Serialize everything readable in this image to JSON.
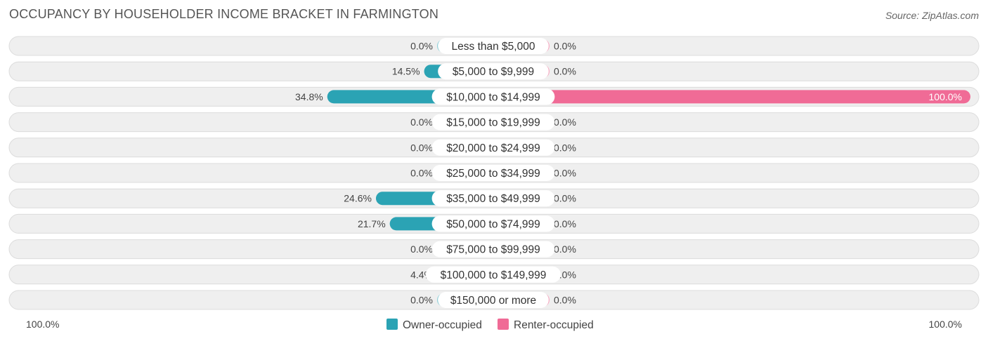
{
  "title": "OCCUPANCY BY HOUSEHOLDER INCOME BRACKET IN FARMINGTON",
  "source": "Source: ZipAtlas.com",
  "colors": {
    "owner": "#2ba3b4",
    "owner_light": "#8ecfd8",
    "renter": "#f06b96",
    "renter_light": "#f7a8c1",
    "row_bg": "#efefef",
    "row_border": "#dcdcdc"
  },
  "chart_data": {
    "type": "bar",
    "orientation": "horizontal-diverging",
    "categories": [
      "Less than $5,000",
      "$5,000 to $9,999",
      "$10,000 to $14,999",
      "$15,000 to $19,999",
      "$20,000 to $24,999",
      "$25,000 to $34,999",
      "$35,000 to $49,999",
      "$50,000 to $74,999",
      "$75,000 to $99,999",
      "$100,000 to $149,999",
      "$150,000 or more"
    ],
    "series": [
      {
        "name": "Owner-occupied",
        "values": [
          0.0,
          14.5,
          34.8,
          0.0,
          0.0,
          0.0,
          24.6,
          21.7,
          0.0,
          4.4,
          0.0
        ],
        "labels": [
          "0.0%",
          "14.5%",
          "34.8%",
          "0.0%",
          "0.0%",
          "0.0%",
          "24.6%",
          "21.7%",
          "0.0%",
          "4.4%",
          "0.0%"
        ]
      },
      {
        "name": "Renter-occupied",
        "values": [
          0.0,
          0.0,
          100.0,
          0.0,
          0.0,
          0.0,
          0.0,
          0.0,
          0.0,
          0.0,
          0.0
        ],
        "labels": [
          "0.0%",
          "0.0%",
          "100.0%",
          "0.0%",
          "0.0%",
          "0.0%",
          "0.0%",
          "0.0%",
          "0.0%",
          "0.0%",
          "0.0%"
        ]
      }
    ],
    "xlim": [
      -100,
      100
    ],
    "axis_labels": {
      "left": "100.0%",
      "right": "100.0%"
    },
    "legend_position": "bottom-center"
  }
}
